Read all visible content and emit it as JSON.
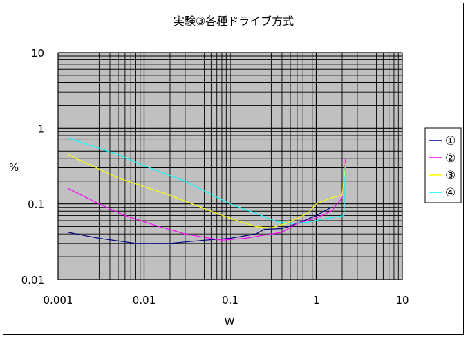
{
  "chart_data": {
    "type": "line",
    "title": "実験③各種ドライブ方式",
    "xlabel": "W",
    "ylabel": "%",
    "xscale": "log",
    "yscale": "log",
    "xlim": [
      0.001,
      10
    ],
    "ylim": [
      0.01,
      10
    ],
    "x_tick_labels": [
      "0.001",
      "0.01",
      "0.1",
      "1",
      "10"
    ],
    "y_tick_labels": [
      "0.01",
      "0.1",
      "1",
      "10"
    ],
    "grid": true,
    "plot_background": "#c0c0c0",
    "legend_position": "right",
    "series": [
      {
        "name": "①",
        "color": "#000080",
        "points": [
          [
            0.0013,
            0.042
          ],
          [
            0.003,
            0.035
          ],
          [
            0.008,
            0.03
          ],
          [
            0.02,
            0.03
          ],
          [
            0.05,
            0.033
          ],
          [
            0.1,
            0.035
          ],
          [
            0.2,
            0.04
          ],
          [
            0.25,
            0.046
          ],
          [
            0.4,
            0.047
          ],
          [
            0.6,
            0.055
          ],
          [
            1.0,
            0.07
          ],
          [
            1.5,
            0.09
          ]
        ]
      },
      {
        "name": "②",
        "color": "#ff00ff",
        "points": [
          [
            0.0013,
            0.16
          ],
          [
            0.003,
            0.1
          ],
          [
            0.006,
            0.07
          ],
          [
            0.015,
            0.05
          ],
          [
            0.03,
            0.04
          ],
          [
            0.08,
            0.033
          ],
          [
            0.15,
            0.035
          ],
          [
            0.3,
            0.04
          ],
          [
            0.4,
            0.042
          ],
          [
            0.6,
            0.055
          ],
          [
            1.0,
            0.065
          ],
          [
            1.5,
            0.08
          ],
          [
            2.0,
            0.12
          ],
          [
            2.2,
            0.4
          ]
        ]
      },
      {
        "name": "③",
        "color": "#ffff00",
        "points": [
          [
            0.0013,
            0.45
          ],
          [
            0.005,
            0.22
          ],
          [
            0.02,
            0.13
          ],
          [
            0.06,
            0.08
          ],
          [
            0.12,
            0.06
          ],
          [
            0.2,
            0.05
          ],
          [
            0.3,
            0.048
          ],
          [
            0.45,
            0.055
          ],
          [
            0.8,
            0.075
          ],
          [
            1.0,
            0.1
          ],
          [
            1.5,
            0.12
          ],
          [
            2.0,
            0.13
          ],
          [
            2.2,
            0.35
          ]
        ]
      },
      {
        "name": "④",
        "color": "#00ffff",
        "points": [
          [
            0.0013,
            0.75
          ],
          [
            0.005,
            0.45
          ],
          [
            0.01,
            0.32
          ],
          [
            0.03,
            0.2
          ],
          [
            0.1,
            0.1
          ],
          [
            0.2,
            0.075
          ],
          [
            0.35,
            0.058
          ],
          [
            0.5,
            0.055
          ],
          [
            0.8,
            0.057
          ],
          [
            1.2,
            0.063
          ],
          [
            1.8,
            0.068
          ],
          [
            2.1,
            0.07
          ],
          [
            2.2,
            0.33
          ]
        ]
      }
    ]
  }
}
